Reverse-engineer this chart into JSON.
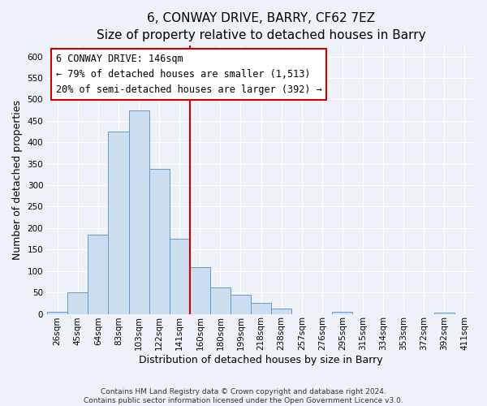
{
  "title": "6, CONWAY DRIVE, BARRY, CF62 7EZ",
  "subtitle": "Size of property relative to detached houses in Barry",
  "xlabel": "Distribution of detached houses by size in Barry",
  "ylabel": "Number of detached properties",
  "bar_labels": [
    "26sqm",
    "45sqm",
    "64sqm",
    "83sqm",
    "103sqm",
    "122sqm",
    "141sqm",
    "160sqm",
    "180sqm",
    "199sqm",
    "218sqm",
    "238sqm",
    "257sqm",
    "276sqm",
    "295sqm",
    "315sqm",
    "334sqm",
    "353sqm",
    "372sqm",
    "392sqm",
    "411sqm"
  ],
  "bar_heights": [
    5,
    50,
    185,
    425,
    475,
    338,
    175,
    108,
    62,
    45,
    25,
    12,
    0,
    0,
    5,
    0,
    0,
    0,
    0,
    3,
    0
  ],
  "bar_color": "#ccddf0",
  "bar_edge_color": "#6699cc",
  "vline_x": 6.5,
  "vline_color": "#cc0000",
  "annotation_title": "6 CONWAY DRIVE: 146sqm",
  "annotation_line1": "← 79% of detached houses are smaller (1,513)",
  "annotation_line2": "20% of semi-detached houses are larger (392) →",
  "annotation_box_color": "#ffffff",
  "annotation_box_edge": "#cc0000",
  "ylim": [
    0,
    625
  ],
  "yticks": [
    0,
    50,
    100,
    150,
    200,
    250,
    300,
    350,
    400,
    450,
    500,
    550,
    600
  ],
  "footer1": "Contains HM Land Registry data © Crown copyright and database right 2024.",
  "footer2": "Contains public sector information licensed under the Open Government Licence v3.0.",
  "background_color": "#eef2f8",
  "grid_color": "#ffffff",
  "title_fontsize": 11,
  "subtitle_fontsize": 9.5,
  "axis_label_fontsize": 9,
  "tick_fontsize": 7.5,
  "annotation_fontsize": 8.5,
  "footer_fontsize": 6.5
}
